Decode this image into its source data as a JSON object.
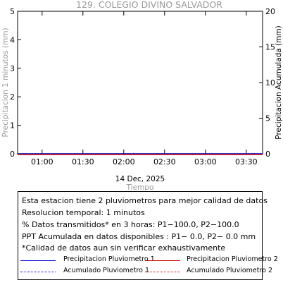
{
  "title": "129. COLEGIO DIVINO SALVADOR",
  "date_label": "14 Dec, 2025",
  "chart_data": {
    "type": "line",
    "x_tick_labels": [
      "01:00",
      "01:30",
      "02:00",
      "02:30",
      "03:00",
      "03:30"
    ],
    "x_ticks_minutes": [
      60,
      90,
      120,
      150,
      180,
      210
    ],
    "xlim_minutes": [
      42,
      222
    ],
    "xlabel": "Tiempo",
    "ylabel_left": "Precipitacion 1 minutos (mm)",
    "ylabel_right": "Precipitacion Acumulada (mm)",
    "ylim_left": [
      0,
      5
    ],
    "ylim_right": [
      0,
      20
    ],
    "left_ticks": [
      0,
      1,
      2,
      3,
      4,
      5
    ],
    "right_ticks": [
      0,
      5,
      10,
      15,
      20
    ],
    "series": [
      {
        "name": "Precipitacion Pluviometro 1",
        "axis": "left",
        "style": "solid",
        "color": "#0000cc",
        "x": [
          42,
          222
        ],
        "values": [
          0,
          0
        ]
      },
      {
        "name": "Precipitacion Pluviometro 2",
        "axis": "left",
        "style": "solid",
        "color": "#cc0000",
        "x": [
          42,
          222
        ],
        "values": [
          0,
          0
        ]
      },
      {
        "name": "Acumulado Pluviometro 1",
        "axis": "right",
        "style": "dotted",
        "color": "#0000cc",
        "x": [
          42,
          222
        ],
        "values": [
          0,
          0
        ]
      },
      {
        "name": "Acumulado Pluviometro 2",
        "axis": "right",
        "style": "dotted",
        "color": "#cc0000",
        "x": [
          42,
          222
        ],
        "values": [
          0,
          0
        ]
      }
    ]
  },
  "info": {
    "line1": "Esta estacion tiene 2 pluviometros para mejor calidad de datos",
    "line2": "Resolucion temporal: 1 minutos",
    "line3": "% Datos transmitidos* en 3 horas: P1−100.0, P2−100.0",
    "line4": "PPT Acumulada en datos disponibles : P1−  0.0, P2−  0.0 mm",
    "line5": "*Calidad de datos aun sin verificar exhaustivamente"
  },
  "legend": {
    "p1_rate": "Precipitacion Pluviometro 1",
    "p2_rate": "Precipitacion Pluviometro 2",
    "p1_acc": "Acumulado Pluviometro 1",
    "p2_acc": "Acumulado Pluviometro 2"
  },
  "colors": {
    "gray_text": "#999999",
    "blue": "#0000cc",
    "red": "#cc0000"
  }
}
